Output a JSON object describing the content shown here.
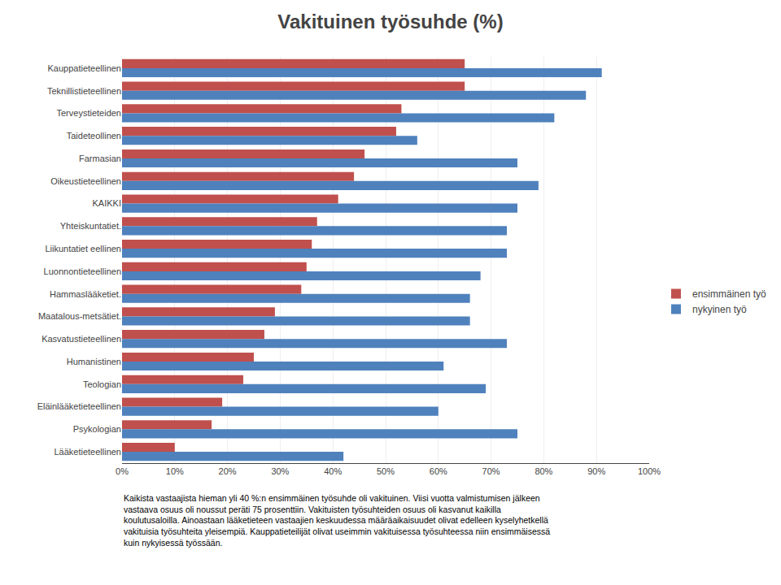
{
  "chart_data": {
    "type": "bar",
    "orientation": "horizontal",
    "title": "Vakituinen työsuhde (%)",
    "categories": [
      "Kauppatieteellinen",
      "Teknillistieteellinen",
      "Terveystieteiden",
      "Taideteollinen",
      "Farmasian",
      "Oikeustieteellinen",
      "KAIKKI",
      "Yhteiskuntatiet.",
      "Liikuntatiet eellinen",
      "Luonnontieteellinen",
      "Hammaslääketiet.",
      "Maatalous-metsätiet.",
      "Kasvatustieteellinen",
      "Humanistinen",
      "Teologian",
      "Eläinlääketieteellinen",
      "Psykologian",
      "Lääketieteellinen"
    ],
    "series": [
      {
        "name": "ensimmäinen työ",
        "color": "#C0504D",
        "values": [
          65,
          65,
          53,
          52,
          46,
          44,
          41,
          37,
          36,
          35,
          34,
          29,
          27,
          25,
          23,
          19,
          17,
          10
        ]
      },
      {
        "name": "nykyinen työ",
        "color": "#4F81BD",
        "values": [
          91,
          88,
          82,
          56,
          75,
          79,
          75,
          73,
          73,
          68,
          66,
          66,
          73,
          61,
          69,
          60,
          75,
          42
        ]
      }
    ],
    "xlim": [
      0,
      100
    ],
    "xticks": [
      {
        "value": 0,
        "label": "0%"
      },
      {
        "value": 10,
        "label": "10%"
      },
      {
        "value": 20,
        "label": "20%"
      },
      {
        "value": 30,
        "label": "30%"
      },
      {
        "value": 40,
        "label": "40%"
      },
      {
        "value": 50,
        "label": "50%"
      },
      {
        "value": 60,
        "label": "60%"
      },
      {
        "value": 70,
        "label": "70%"
      },
      {
        "value": 80,
        "label": "80%"
      },
      {
        "value": 90,
        "label": "90%"
      },
      {
        "value": 100,
        "label": "100%"
      }
    ],
    "grid": true,
    "legend": "right",
    "annotations": [
      "Kaikista vastaajista hieman yli 40 %:n ensimmäinen työsuhde oli vakituinen. Viisi vuotta valmistumisen jälkeen\nvastaava osuus oli noussut peräti 75 prosenttiin. Vakituisten työsuhteiden osuus oli kasvanut kaikilla\nkoulutusaloilla. Ainoastaan lääketieteen vastaajien keskuudessa määräaikaisuudet olivat edelleen kyselyhetkellä\nvakituisia työsuhteita yleisempiä. Kauppatieteilijät olivat useimmin vakituisessa työsuhteessa niin ensimmäisessä\nkuin nykyisessä työssään."
    ]
  }
}
